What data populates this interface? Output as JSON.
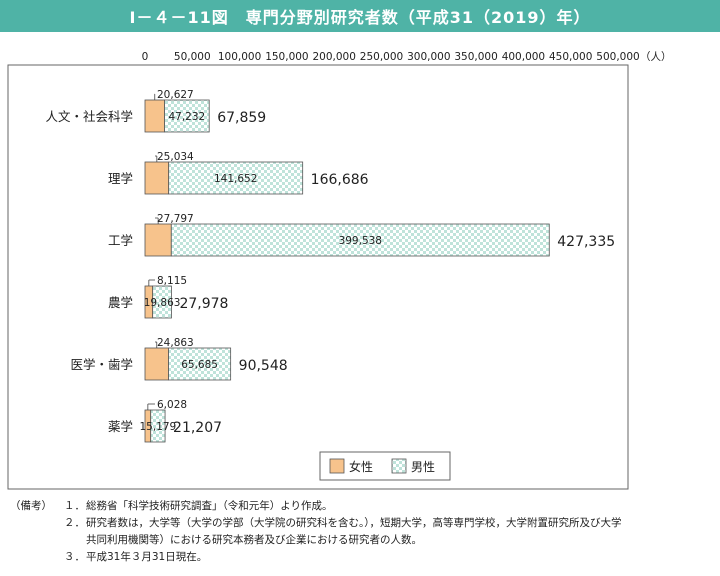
{
  "title": "Ⅰ－４－11図　専門分野別研究者数（平成31（2019）年）",
  "chart_data": {
    "type": "bar",
    "orientation": "horizontal",
    "stacked": true,
    "categories": [
      "人文・社会科学",
      "理学",
      "工学",
      "農学",
      "医学・歯学",
      "薬学"
    ],
    "series": [
      {
        "name": "女性",
        "values": [
          20627,
          25034,
          27797,
          8115,
          24863,
          6028
        ],
        "color": "#f7c38c",
        "pattern": "solid"
      },
      {
        "name": "男性",
        "values": [
          47232,
          141652,
          399538,
          19863,
          65685,
          15179
        ],
        "color": "#cfe9e3",
        "pattern": "checker"
      }
    ],
    "totals": [
      67859,
      166686,
      427335,
      27978,
      90548,
      21207
    ],
    "value_labels": {
      "female": [
        "20,627",
        "25,034",
        "27,797",
        "8,115",
        "24,863",
        "6,028"
      ],
      "male": [
        "47,232",
        "141,652",
        "399,538",
        "19,863",
        "65,685",
        "15,179"
      ],
      "total": [
        "67,859",
        "166,686",
        "427,335",
        "27,978",
        "90,548",
        "21,207"
      ]
    },
    "x_ticks": [
      0,
      50000,
      100000,
      150000,
      200000,
      250000,
      300000,
      350000,
      400000,
      450000,
      500000
    ],
    "x_tick_labels": [
      "0",
      "50,000",
      "100,000",
      "150,000",
      "200,000",
      "250,000",
      "300,000",
      "350,000",
      "400,000",
      "450,000",
      "500,000"
    ],
    "x_unit": "（人）",
    "xlim": [
      0,
      500000
    ],
    "legend_position": "bottom-right",
    "grid": false
  },
  "notes": {
    "head": "（備考）",
    "items": [
      {
        "num": "１．",
        "lines": [
          "総務省「科学技術研究調査」（令和元年）より作成。"
        ]
      },
      {
        "num": "２．",
        "lines": [
          "研究者数は，大学等（大学の学部（大学院の研究科を含む。），短期大学，高等専門学校，大学附置研究所及び大学",
          "共同利用機関等）における研究本務者及び企業における研究者の人数。"
        ]
      },
      {
        "num": "３．",
        "lines": [
          "平成31年３月31日現在。"
        ]
      }
    ]
  }
}
